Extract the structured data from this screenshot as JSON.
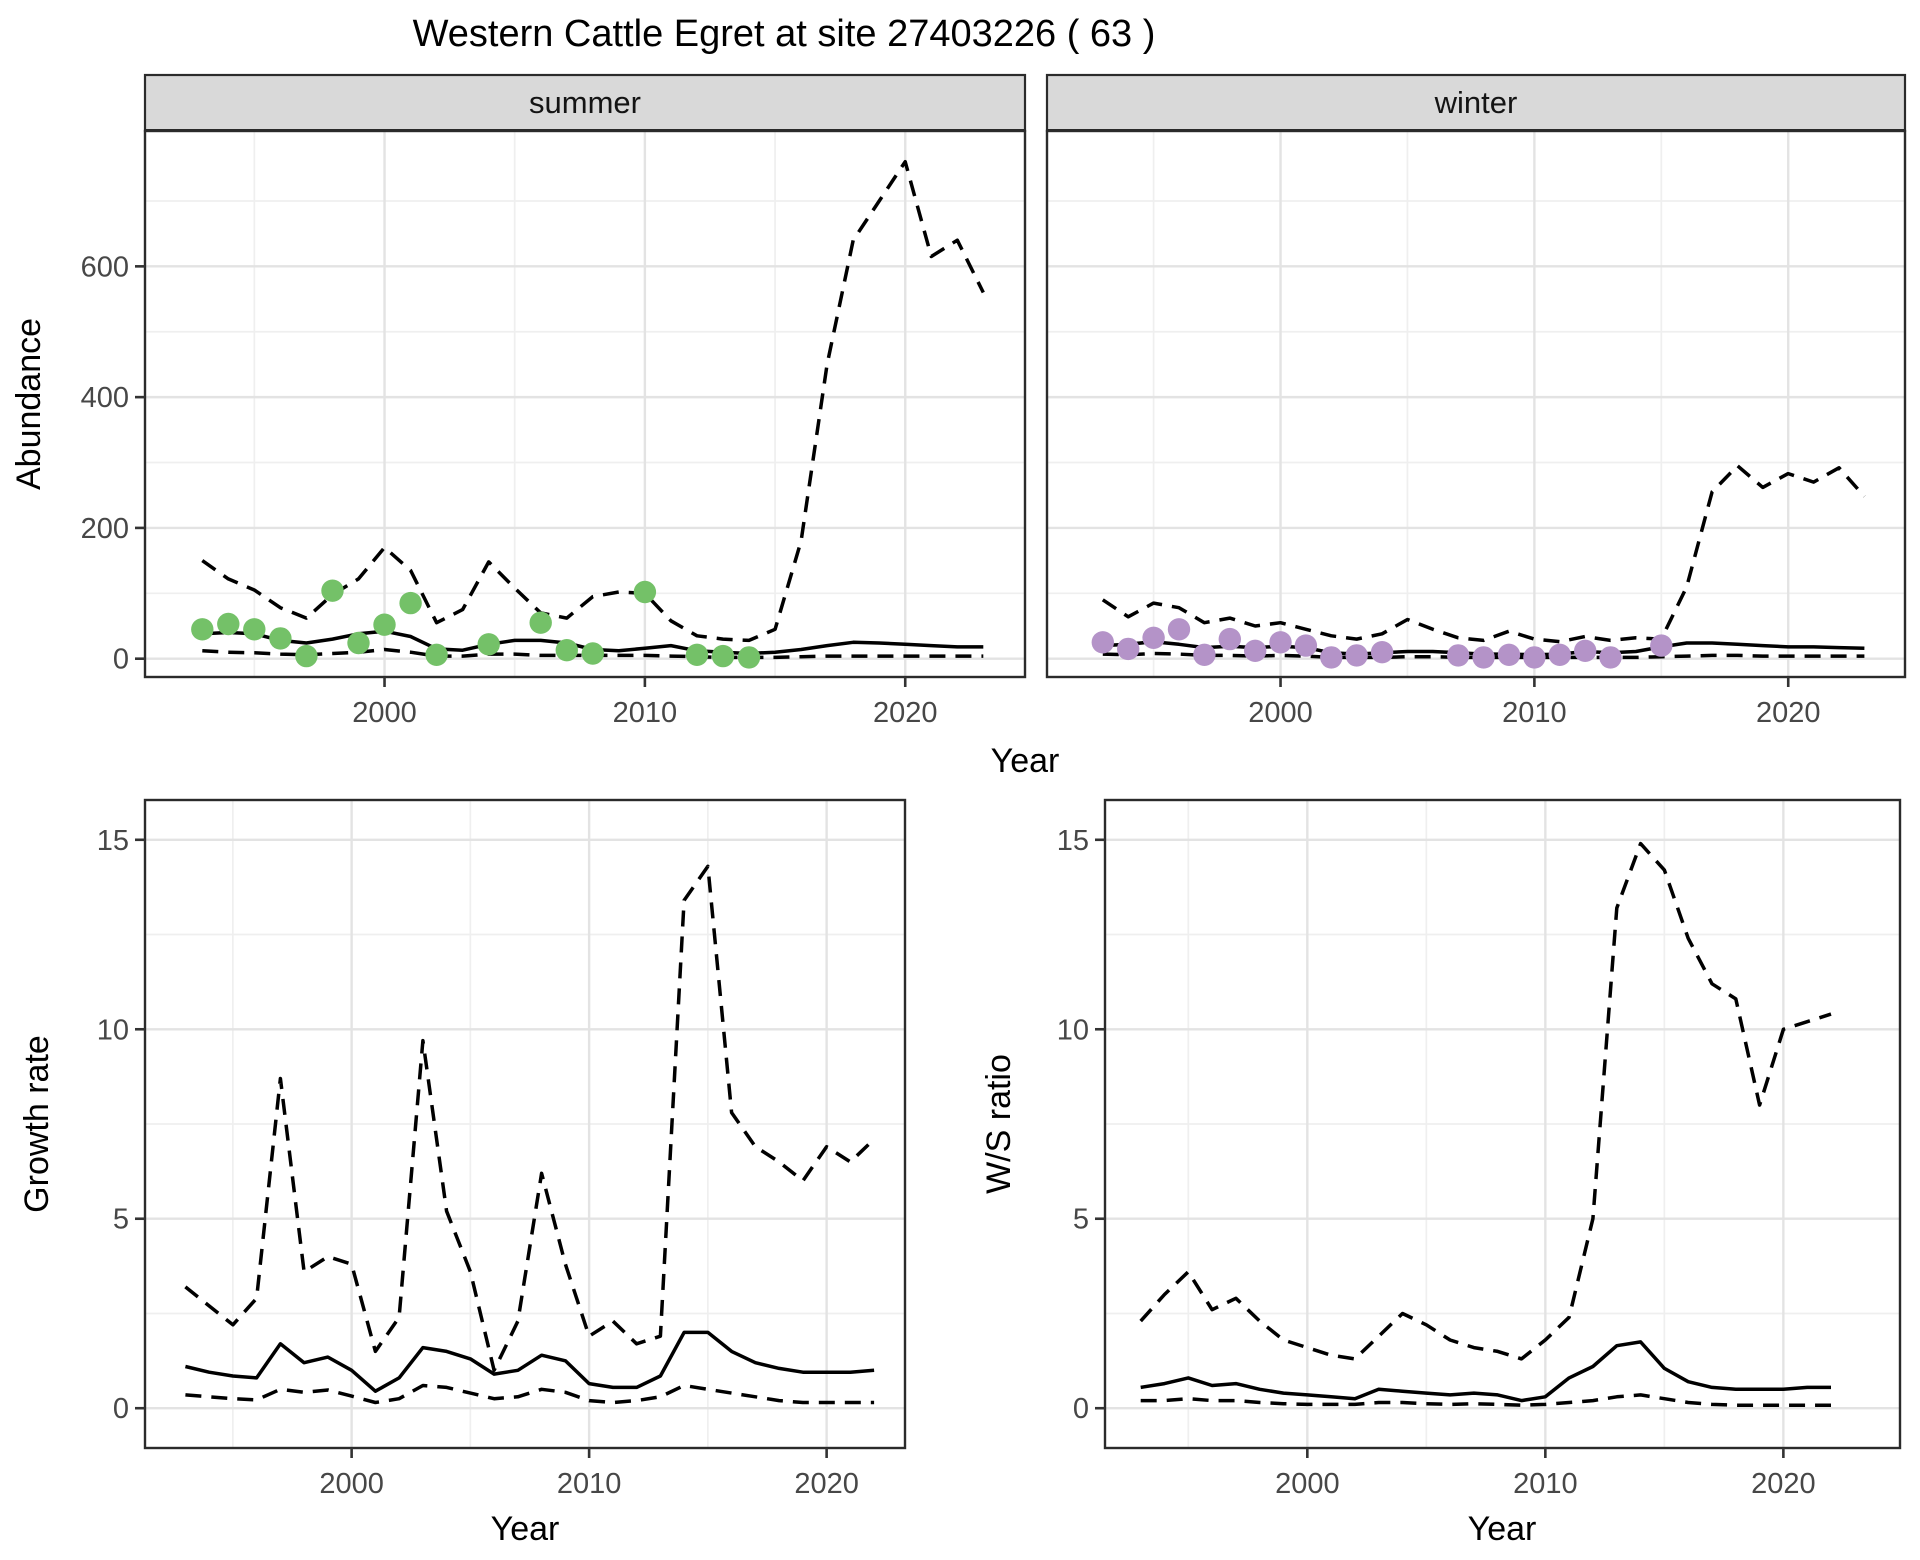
{
  "title": "Western Cattle Egret at site 27403226 ( 63 )",
  "facets": {
    "summer_label": "summer",
    "winter_label": "winter"
  },
  "axes": {
    "abundance_label": "Abundance",
    "growth_label": "Growth rate",
    "ws_label": "W/S ratio",
    "year_label": "Year"
  },
  "colors": {
    "summer_point": "#74c168",
    "winter_point": "#b493c8",
    "line": "#000000",
    "grid_major": "#e3e3e3",
    "grid_minor": "#efefef",
    "strip_bg": "#d9d9d9",
    "panel_border": "#2b2b2b",
    "axis_text": "#474747"
  },
  "chart_data": [
    {
      "id": "abundance_summer",
      "type": "line",
      "facet": "summer",
      "ylabel": "Abundance",
      "xlabel": "Year",
      "xlim": [
        1990.8,
        2024.6
      ],
      "ylim": [
        -28,
        807
      ],
      "xticks": [
        2000,
        2010,
        2020
      ],
      "xminor": [
        1995,
        2005,
        2015
      ],
      "yticks": [
        0,
        200,
        400,
        600
      ],
      "yminor": [
        100,
        300,
        500,
        700
      ],
      "years": [
        1993,
        1994,
        1995,
        1996,
        1997,
        1998,
        1999,
        2000,
        2001,
        2002,
        2003,
        2004,
        2005,
        2006,
        2007,
        2008,
        2009,
        2010,
        2011,
        2012,
        2013,
        2014,
        2015,
        2016,
        2017,
        2018,
        2019,
        2020,
        2021,
        2022,
        2023
      ],
      "series": [
        {
          "name": "upper_ci",
          "style": "dashed",
          "values": [
            150,
            122,
            105,
            78,
            62,
            98,
            122,
            170,
            135,
            55,
            75,
            148,
            108,
            70,
            62,
            95,
            102,
            100,
            58,
            35,
            30,
            28,
            45,
            180,
            450,
            640,
            700,
            760,
            615,
            640,
            560
          ]
        },
        {
          "name": "median",
          "style": "solid",
          "values": [
            38,
            40,
            38,
            28,
            24,
            30,
            38,
            42,
            34,
            15,
            13,
            22,
            28,
            28,
            24,
            14,
            12,
            16,
            20,
            12,
            10,
            8,
            10,
            14,
            20,
            25,
            24,
            22,
            20,
            18,
            18
          ]
        },
        {
          "name": "lower_ci",
          "style": "dashed",
          "values": [
            12,
            10,
            9,
            7,
            6,
            8,
            10,
            14,
            10,
            4,
            4,
            7,
            7,
            5,
            5,
            5,
            5,
            5,
            4,
            3,
            2,
            2,
            2,
            3,
            4,
            4,
            4,
            4,
            4,
            4,
            4
          ]
        }
      ],
      "obs_years": [
        1993,
        1994,
        1995,
        1996,
        1997,
        1998,
        1999,
        2000,
        2001,
        2002,
        2004,
        2006,
        2007,
        2008,
        2010,
        2012,
        2013,
        2014
      ],
      "obs_values": [
        45,
        53,
        45,
        31,
        4,
        104,
        24,
        52,
        85,
        6,
        22,
        55,
        13,
        8,
        102,
        6,
        4,
        2
      ],
      "point_color": "#74c168"
    },
    {
      "id": "abundance_winter",
      "type": "line",
      "facet": "winter",
      "ylabel": "Abundance",
      "xlabel": "Year",
      "xlim": [
        1990.8,
        2024.6
      ],
      "ylim": [
        -28,
        807
      ],
      "xticks": [
        2000,
        2010,
        2020
      ],
      "xminor": [
        1995,
        2005,
        2015
      ],
      "yticks": [
        0,
        200,
        400,
        600
      ],
      "yminor": [
        100,
        300,
        500,
        700
      ],
      "years": [
        1993,
        1994,
        1995,
        1996,
        1997,
        1998,
        1999,
        2000,
        2001,
        2002,
        2003,
        2004,
        2005,
        2006,
        2007,
        2008,
        2009,
        2010,
        2011,
        2012,
        2013,
        2014,
        2015,
        2016,
        2017,
        2018,
        2019,
        2020,
        2021,
        2022,
        2023
      ],
      "series": [
        {
          "name": "upper_ci",
          "style": "dashed",
          "values": [
            90,
            64,
            85,
            78,
            55,
            62,
            50,
            55,
            45,
            35,
            30,
            38,
            60,
            45,
            32,
            28,
            42,
            30,
            26,
            34,
            28,
            32,
            30,
            110,
            255,
            295,
            262,
            283,
            270,
            292,
            248
          ]
        },
        {
          "name": "median",
          "style": "solid",
          "values": [
            20,
            22,
            26,
            22,
            17,
            19,
            17,
            19,
            17,
            9,
            7,
            9,
            11,
            11,
            9,
            7,
            7,
            6,
            7,
            11,
            9,
            11,
            18,
            24,
            24,
            22,
            20,
            18,
            18,
            17,
            16
          ]
        },
        {
          "name": "lower_ci",
          "style": "dashed",
          "values": [
            7,
            6,
            8,
            7,
            5,
            5,
            4,
            5,
            4,
            2,
            2,
            2,
            3,
            3,
            2,
            2,
            2,
            2,
            2,
            2,
            2,
            2,
            3,
            4,
            5,
            5,
            4,
            4,
            4,
            4,
            4
          ]
        }
      ],
      "obs_years": [
        1993,
        1994,
        1995,
        1996,
        1997,
        1998,
        1999,
        2000,
        2001,
        2002,
        2003,
        2004,
        2007,
        2008,
        2009,
        2010,
        2011,
        2012,
        2013,
        2015
      ],
      "obs_values": [
        25,
        15,
        32,
        45,
        6,
        30,
        12,
        25,
        20,
        2,
        5,
        10,
        5,
        2,
        6,
        2,
        6,
        12,
        2,
        20
      ],
      "point_color": "#b493c8"
    },
    {
      "id": "growth_rate",
      "type": "line",
      "facet": null,
      "ylabel": "Growth rate",
      "xlabel": "Year",
      "xlim": [
        1991.3,
        2023.3
      ],
      "ylim": [
        -1.05,
        16.05
      ],
      "xticks": [
        2000,
        2010,
        2020
      ],
      "xminor": [
        1995,
        2005,
        2015
      ],
      "yticks": [
        0,
        5,
        10,
        15
      ],
      "yminor": [
        2.5,
        7.5,
        12.5
      ],
      "years": [
        1993,
        1994,
        1995,
        1996,
        1997,
        1998,
        1999,
        2000,
        2001,
        2002,
        2003,
        2004,
        2005,
        2006,
        2007,
        2008,
        2009,
        2010,
        2011,
        2012,
        2013,
        2014,
        2015,
        2016,
        2017,
        2018,
        2019,
        2020,
        2021,
        2022
      ],
      "series": [
        {
          "name": "upper_ci",
          "style": "dashed",
          "values": [
            3.2,
            2.7,
            2.2,
            2.9,
            8.7,
            3.6,
            4.0,
            3.8,
            1.5,
            2.4,
            9.7,
            5.2,
            3.6,
            1.0,
            2.3,
            6.2,
            3.8,
            1.9,
            2.3,
            1.7,
            1.9,
            13.4,
            14.3,
            7.8,
            6.9,
            6.5,
            6.0,
            6.9,
            6.5,
            7.1
          ]
        },
        {
          "name": "median",
          "style": "solid",
          "values": [
            1.1,
            0.95,
            0.85,
            0.8,
            1.7,
            1.2,
            1.35,
            1.0,
            0.45,
            0.8,
            1.6,
            1.5,
            1.3,
            0.9,
            1.0,
            1.4,
            1.25,
            0.65,
            0.55,
            0.55,
            0.85,
            2.0,
            2.0,
            1.5,
            1.2,
            1.05,
            0.95,
            0.95,
            0.95,
            1.0
          ]
        },
        {
          "name": "lower_ci",
          "style": "dashed",
          "values": [
            0.35,
            0.3,
            0.25,
            0.22,
            0.5,
            0.42,
            0.48,
            0.32,
            0.15,
            0.25,
            0.6,
            0.55,
            0.4,
            0.25,
            0.3,
            0.5,
            0.42,
            0.2,
            0.15,
            0.2,
            0.3,
            0.6,
            0.5,
            0.4,
            0.3,
            0.2,
            0.15,
            0.15,
            0.15,
            0.15
          ]
        }
      ],
      "obs_years": [],
      "obs_values": [],
      "point_color": null
    },
    {
      "id": "ws_ratio",
      "type": "line",
      "facet": null,
      "ylabel": "W/S ratio",
      "xlabel": "Year",
      "xlim": [
        1991.5,
        2024.9
      ],
      "ylim": [
        -1.05,
        16.05
      ],
      "xticks": [
        2000,
        2010,
        2020
      ],
      "xminor": [
        1995,
        2005,
        2015
      ],
      "yticks": [
        0,
        5,
        10,
        15
      ],
      "yminor": [
        2.5,
        7.5,
        12.5
      ],
      "years": [
        1993,
        1994,
        1995,
        1996,
        1997,
        1998,
        1999,
        2000,
        2001,
        2002,
        2003,
        2004,
        2005,
        2006,
        2007,
        2008,
        2009,
        2010,
        2011,
        2012,
        2013,
        2014,
        2015,
        2016,
        2017,
        2018,
        2019,
        2020,
        2021,
        2022
      ],
      "series": [
        {
          "name": "upper_ci",
          "style": "dashed",
          "values": [
            2.3,
            3.0,
            3.6,
            2.6,
            2.9,
            2.3,
            1.8,
            1.6,
            1.4,
            1.3,
            1.9,
            2.5,
            2.2,
            1.8,
            1.6,
            1.5,
            1.3,
            1.8,
            2.4,
            5.0,
            13.2,
            14.9,
            14.2,
            12.4,
            11.2,
            10.8,
            8.0,
            10.0,
            10.2,
            10.4
          ]
        },
        {
          "name": "median",
          "style": "solid",
          "values": [
            0.55,
            0.65,
            0.8,
            0.6,
            0.65,
            0.5,
            0.4,
            0.35,
            0.3,
            0.25,
            0.5,
            0.45,
            0.4,
            0.35,
            0.4,
            0.35,
            0.2,
            0.3,
            0.8,
            1.1,
            1.65,
            1.75,
            1.05,
            0.7,
            0.55,
            0.5,
            0.5,
            0.5,
            0.55,
            0.55
          ]
        },
        {
          "name": "lower_ci",
          "style": "dashed",
          "values": [
            0.2,
            0.2,
            0.25,
            0.2,
            0.2,
            0.15,
            0.12,
            0.1,
            0.1,
            0.1,
            0.15,
            0.15,
            0.12,
            0.1,
            0.12,
            0.1,
            0.08,
            0.1,
            0.15,
            0.2,
            0.3,
            0.35,
            0.25,
            0.15,
            0.1,
            0.08,
            0.08,
            0.08,
            0.08,
            0.08
          ]
        }
      ],
      "obs_years": [],
      "obs_values": [],
      "point_color": null
    }
  ]
}
